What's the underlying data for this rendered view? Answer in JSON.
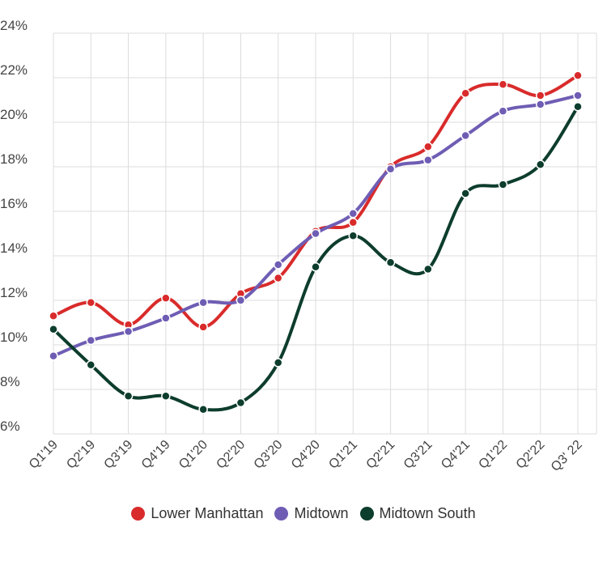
{
  "chart_data": {
    "type": "line",
    "categories": [
      "Q1'19",
      "Q2'19",
      "Q3'19",
      "Q4'19",
      "Q1'20",
      "Q2'20",
      "Q3'20",
      "Q4'20",
      "Q1'21",
      "Q2'21",
      "Q3'21",
      "Q4'21",
      "Q1'22",
      "Q2'22",
      "Q3' 22"
    ],
    "ylim": [
      6,
      24
    ],
    "yticks": [
      6,
      8,
      10,
      12,
      14,
      16,
      18,
      20,
      22,
      24
    ],
    "ytick_suffix": "%",
    "grid": true,
    "legend_position": "bottom",
    "series": [
      {
        "name": "Lower Manhattan",
        "color": "#d92b2b",
        "values": [
          11.3,
          11.9,
          10.9,
          12.1,
          10.8,
          12.3,
          13.0,
          15.1,
          15.5,
          18.0,
          18.9,
          21.3,
          21.7,
          21.2,
          22.1
        ]
      },
      {
        "name": "Midtown",
        "color": "#6f5db4",
        "values": [
          9.5,
          10.2,
          10.6,
          11.2,
          11.9,
          12.0,
          13.6,
          15.0,
          15.9,
          17.9,
          18.3,
          19.4,
          20.5,
          20.8,
          21.2
        ]
      },
      {
        "name": "Midtown South",
        "color": "#0d3d2c",
        "values": [
          10.7,
          9.1,
          7.7,
          7.7,
          7.1,
          7.4,
          9.2,
          13.5,
          14.9,
          13.7,
          13.4,
          16.8,
          17.2,
          18.1,
          20.7
        ]
      }
    ]
  }
}
